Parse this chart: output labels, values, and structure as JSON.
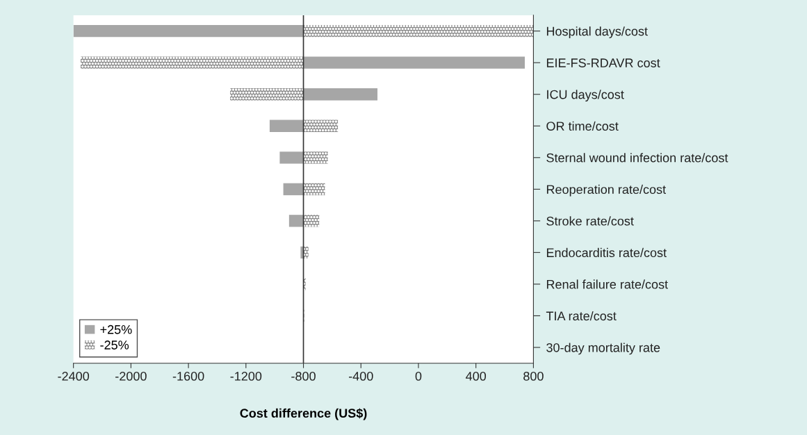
{
  "chart_data": {
    "type": "bar",
    "orientation": "horizontal",
    "xlabel": "Cost difference (US$)",
    "categories": [
      "Hospital days/cost",
      "EIE-FS-RDAVR cost",
      "ICU days/cost",
      "OR time/cost",
      "Sternal wound infection rate/cost",
      "Reoperation rate/cost",
      "Stroke rate/cost",
      "Endocarditis rate/cost",
      "Renal failure rate/cost",
      "TIA rate/cost",
      "30-day mortality rate"
    ],
    "series": [
      {
        "name": "+25%",
        "color": "#a6a6a6",
        "base": [
          -800,
          -800,
          -800,
          -800,
          -800,
          -800,
          -800,
          -800,
          null,
          null,
          null
        ],
        "values": [
          -1600,
          1540,
          515,
          -235,
          -165,
          -140,
          -100,
          -20,
          null,
          null,
          null
        ]
      },
      {
        "name": "-25%",
        "color": "#8a8a8a",
        "base": [
          -800,
          -800,
          -800,
          -800,
          -800,
          -800,
          -800,
          -800,
          -800,
          -800,
          null
        ],
        "values": [
          1600,
          -1550,
          -510,
          240,
          170,
          150,
          110,
          35,
          15,
          5,
          null
        ]
      }
    ],
    "xlim": [
      -2400,
      800
    ],
    "xticks": [
      -2400,
      -2000,
      -1600,
      -1200,
      -800,
      -400,
      0,
      400,
      800
    ],
    "ref_lines": [
      {
        "axis": "x",
        "value": -800,
        "color": "#333333",
        "line_style": "solid"
      }
    ],
    "legend": "bottom left",
    "grid": false
  }
}
